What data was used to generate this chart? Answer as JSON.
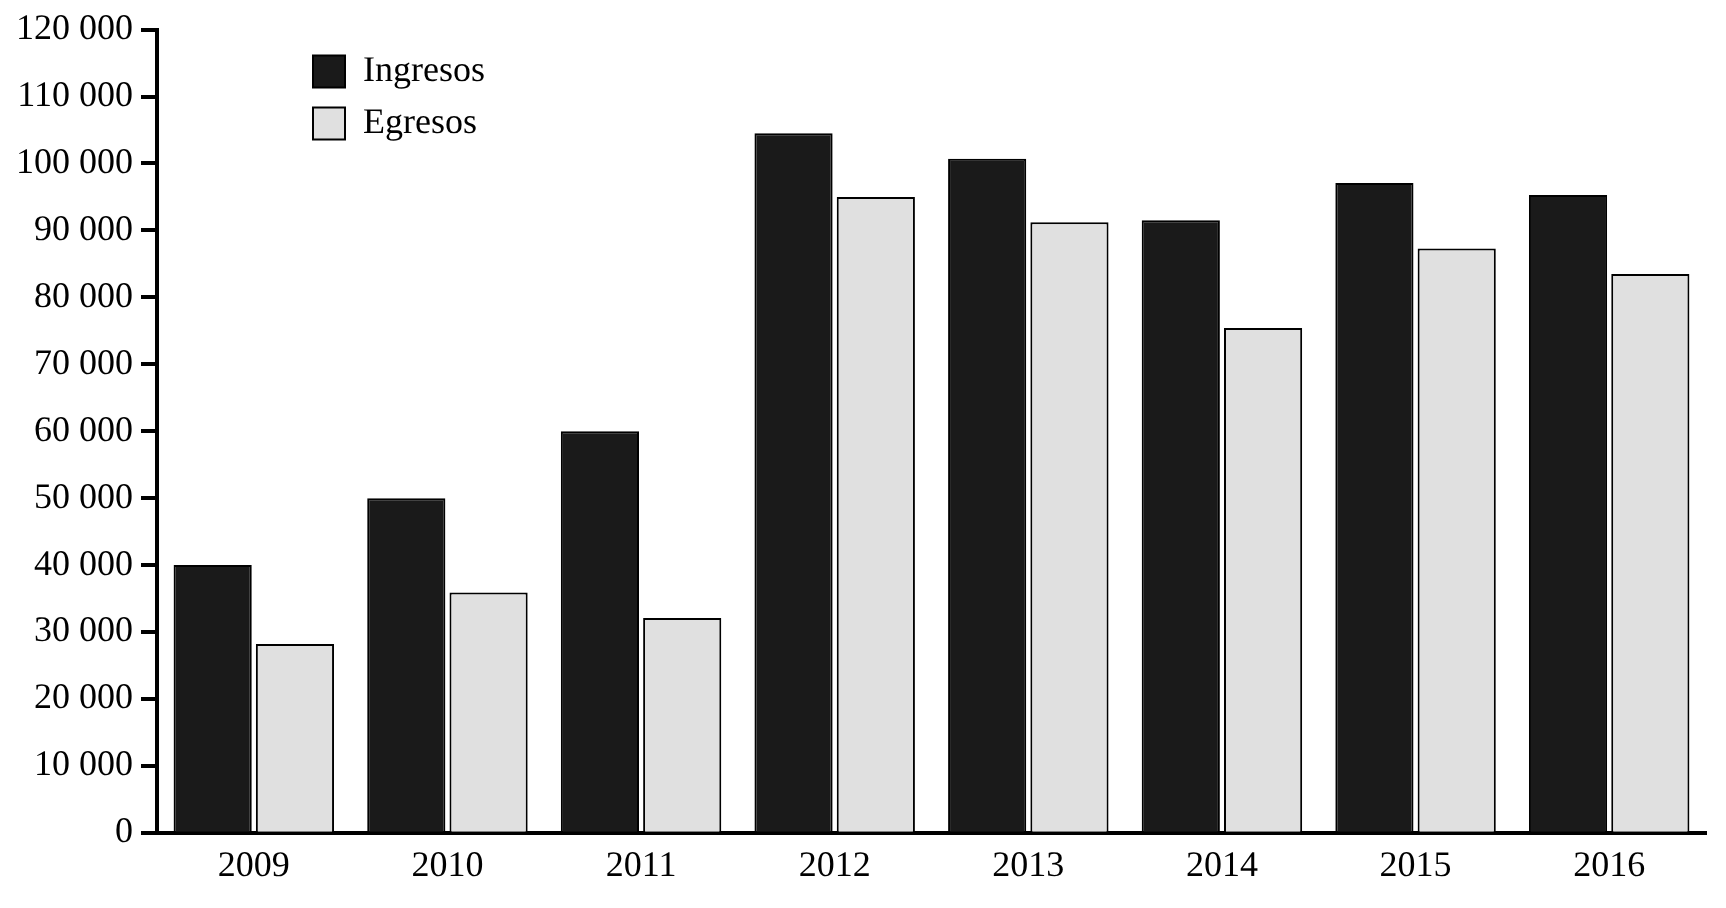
{
  "chart_data": {
    "type": "bar",
    "categories": [
      "2009",
      "2010",
      "2011",
      "2012",
      "2013",
      "2014",
      "2015",
      "2016"
    ],
    "series": [
      {
        "name": "Ingresos",
        "color": "#1a1a1a",
        "values": [
          40000,
          50000,
          60000,
          104500,
          100700,
          91500,
          97100,
          95300
        ]
      },
      {
        "name": "Egresos",
        "color": "#e0e0e0",
        "values": [
          28200,
          35900,
          32100,
          95000,
          91200,
          75400,
          87300,
          83500
        ]
      }
    ],
    "ylim": [
      0,
      120000
    ],
    "yticks": [
      0,
      {
        "value": 10000,
        "label": "10 000"
      },
      {
        "value": 20000,
        "label": "20 000"
      },
      {
        "value": 30000,
        "label": "30 000"
      },
      {
        "value": 40000,
        "label": "40 000"
      },
      {
        "value": 50000,
        "label": "50 000"
      },
      {
        "value": 60000,
        "label": "60 000"
      },
      {
        "value": 70000,
        "label": "70 000"
      },
      {
        "value": 80000,
        "label": "80 000"
      },
      {
        "value": 90000,
        "label": "90 000"
      },
      {
        "value": 100000,
        "label": "100 000"
      },
      {
        "value": 110000,
        "label": "110 000"
      },
      {
        "value": 120000,
        "label": "120 000"
      }
    ],
    "grid": false,
    "legend": "top left"
  }
}
